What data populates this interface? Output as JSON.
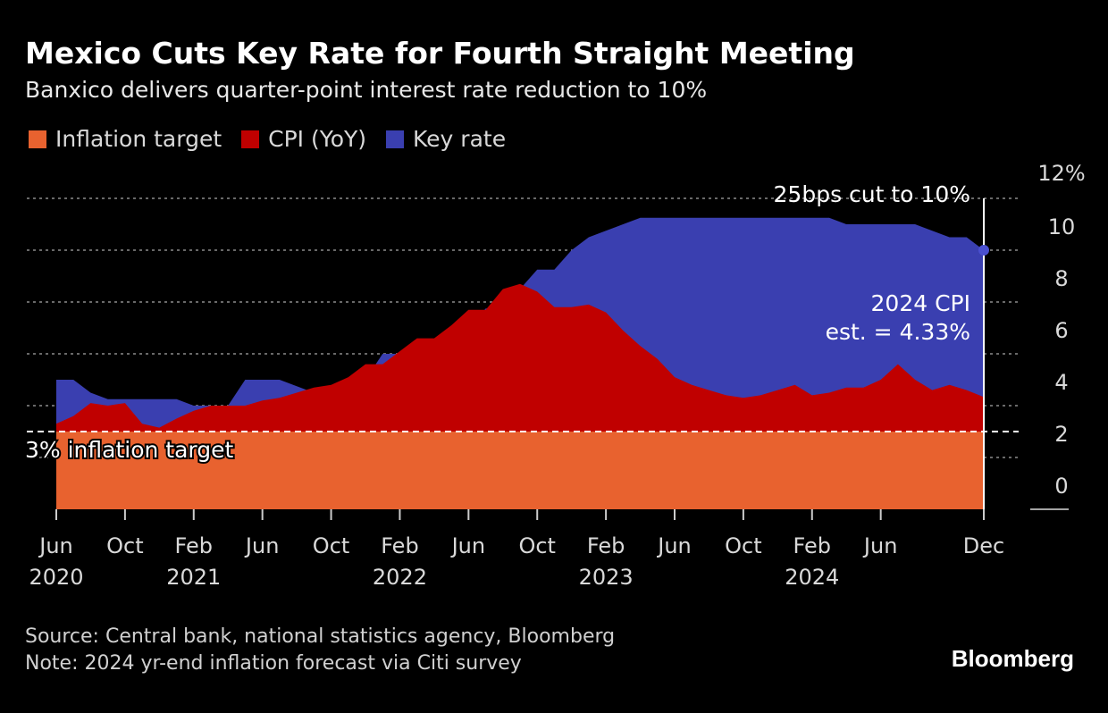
{
  "title": "Mexico Cuts Key Rate for Fourth Straight Meeting",
  "subtitle": "Banxico delivers quarter-point interest rate reduction to 10%",
  "legend": [
    {
      "label": "Inflation target",
      "color": "#e8622f"
    },
    {
      "label": "CPI (YoY)",
      "color": "#c00000"
    },
    {
      "label": "Key rate",
      "color": "#3a3fb0"
    }
  ],
  "annotations": {
    "cut": "25bps cut to 10%",
    "cpi_line1": "2024 CPI",
    "cpi_line2": "est. = 4.33%",
    "target": "3% inflation target"
  },
  "footer": {
    "source": "Source: Central bank, national statistics agency, Bloomberg",
    "note": "Note: 2024 yr-end inflation forecast via Citi survey"
  },
  "brand": "Bloomberg",
  "chart_data": {
    "type": "area",
    "title": "Mexico Cuts Key Rate for Fourth Straight Meeting",
    "x_start": "2020-06",
    "x_count": 55,
    "ylim": [
      0,
      12
    ],
    "yticks": [
      0,
      2,
      4,
      6,
      8,
      10
    ],
    "ytick_labels": [
      "0",
      "2",
      "4",
      "6",
      "8",
      "10"
    ],
    "y_top_label": "12%",
    "xticks": [
      {
        "index": 0,
        "month": "Jun",
        "year": "2020"
      },
      {
        "index": 4,
        "month": "Oct",
        "year": ""
      },
      {
        "index": 8,
        "month": "Feb",
        "year": "2021"
      },
      {
        "index": 12,
        "month": "Jun",
        "year": ""
      },
      {
        "index": 16,
        "month": "Oct",
        "year": ""
      },
      {
        "index": 20,
        "month": "Feb",
        "year": "2022"
      },
      {
        "index": 24,
        "month": "Jun",
        "year": ""
      },
      {
        "index": 28,
        "month": "Oct",
        "year": ""
      },
      {
        "index": 32,
        "month": "Feb",
        "year": "2023"
      },
      {
        "index": 36,
        "month": "Jun",
        "year": ""
      },
      {
        "index": 40,
        "month": "Oct",
        "year": ""
      },
      {
        "index": 44,
        "month": "Feb",
        "year": "2024"
      },
      {
        "index": 48,
        "month": "Jun",
        "year": ""
      },
      {
        "index": 54,
        "month": "Dec",
        "year": ""
      }
    ],
    "series": [
      {
        "name": "Inflation target",
        "color": "#e8622f",
        "values": [
          3,
          3,
          3,
          3,
          3,
          3,
          3,
          3,
          3,
          3,
          3,
          3,
          3,
          3,
          3,
          3,
          3,
          3,
          3,
          3,
          3,
          3,
          3,
          3,
          3,
          3,
          3,
          3,
          3,
          3,
          3,
          3,
          3,
          3,
          3,
          3,
          3,
          3,
          3,
          3,
          3,
          3,
          3,
          3,
          3,
          3,
          3,
          3,
          3,
          3,
          3,
          3,
          3,
          3,
          3
        ]
      },
      {
        "name": "CPI (YoY)",
        "color": "#c00000",
        "values": [
          3.3,
          3.6,
          4.1,
          4.0,
          4.1,
          3.3,
          3.15,
          3.5,
          3.8,
          4.0,
          4.0,
          4.0,
          4.2,
          4.3,
          4.5,
          4.7,
          4.8,
          5.1,
          5.6,
          5.6,
          6.1,
          6.6,
          6.6,
          7.1,
          7.7,
          7.7,
          8.5,
          8.7,
          8.4,
          7.8,
          7.8,
          7.9,
          7.6,
          6.9,
          6.3,
          5.8,
          5.1,
          4.8,
          4.6,
          4.4,
          4.3,
          4.4,
          4.6,
          4.8,
          4.4,
          4.5,
          4.7,
          4.7,
          5.0,
          5.6,
          5.0,
          4.6,
          4.8,
          4.6,
          4.33
        ]
      },
      {
        "name": "Key rate",
        "color": "#3a3fb0",
        "values": [
          5.0,
          5.0,
          4.5,
          4.25,
          4.25,
          4.25,
          4.25,
          4.25,
          4.0,
          4.0,
          4.0,
          5.0,
          5.0,
          5.0,
          4.75,
          4.5,
          4.5,
          5.0,
          5.0,
          6.0,
          6.0,
          6.0,
          6.25,
          6.5,
          7.0,
          7.75,
          7.75,
          8.5,
          9.25,
          9.25,
          10.0,
          10.5,
          10.75,
          11.0,
          11.25,
          11.25,
          11.25,
          11.25,
          11.25,
          11.25,
          11.25,
          11.25,
          11.25,
          11.25,
          11.25,
          11.25,
          11.0,
          11.0,
          11.0,
          11.0,
          11.0,
          10.75,
          10.5,
          10.5,
          10.0
        ]
      }
    ]
  }
}
